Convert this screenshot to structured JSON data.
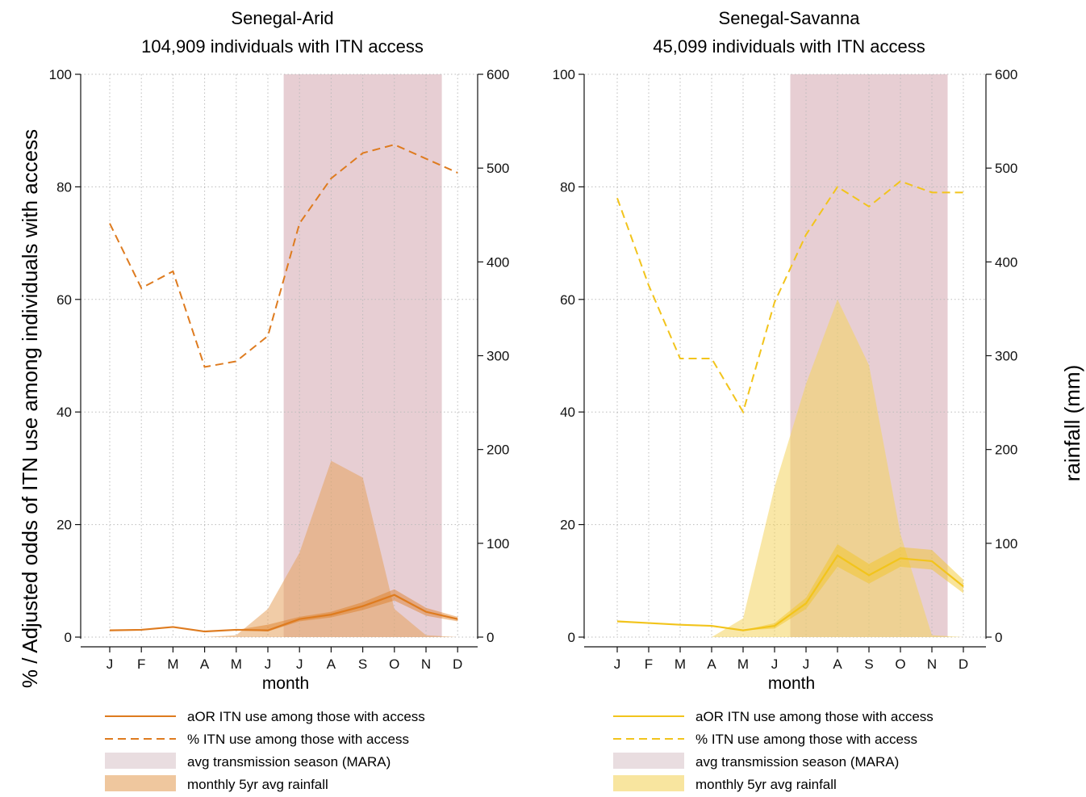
{
  "figure": {
    "ylabel_left": "% / Adjusted odds of ITN use among individuals with access",
    "ylabel_right": "rainfall (mm)"
  },
  "chart_data": [
    {
      "type": "line",
      "title": "Senegal-Arid",
      "subtitle": "104,909 individuals with ITN access",
      "xlabel": "month",
      "categories": [
        "J",
        "F",
        "M",
        "A",
        "M",
        "J",
        "J",
        "A",
        "S",
        "O",
        "N",
        "D"
      ],
      "ylim": [
        0,
        100
      ],
      "y2lim": [
        0,
        600
      ],
      "yticks": [
        0,
        20,
        40,
        60,
        80,
        100
      ],
      "y2ticks": [
        0,
        100,
        200,
        300,
        400,
        500,
        600
      ],
      "grid": true,
      "colors": {
        "line": "#de7b1f",
        "rain": "#e5a25e",
        "season": "#d7aeb6"
      },
      "transmission_season": {
        "start": 6.5,
        "end": 11.5
      },
      "series": [
        {
          "name": "aOR ITN use among those with access",
          "style": "solid",
          "values": [
            1.2,
            1.3,
            1.8,
            1.0,
            1.3,
            1.2,
            3.2,
            4.0,
            5.5,
            7.5,
            4.5,
            3.2
          ],
          "ci_low": [
            1.2,
            1.3,
            1.8,
            1.0,
            1.3,
            1.0,
            2.8,
            3.5,
            4.8,
            6.5,
            3.8,
            2.8
          ],
          "ci_high": [
            1.2,
            1.3,
            1.8,
            1.0,
            1.3,
            2.2,
            3.6,
            4.5,
            6.2,
            8.5,
            5.2,
            3.6
          ]
        },
        {
          "name": "% ITN use among those with access",
          "style": "dashed",
          "values": [
            73.5,
            62,
            65,
            48,
            49,
            53.5,
            73.5,
            81.5,
            86,
            87.5,
            85,
            82.5
          ]
        },
        {
          "name": "monthly 5yr avg rainfall",
          "axis": "right",
          "values": [
            0,
            0,
            0,
            0,
            2,
            30,
            90,
            188,
            170,
            30,
            2,
            0
          ]
        }
      ],
      "legend": [
        {
          "label": "aOR ITN use among those with access",
          "kind": "solid"
        },
        {
          "label": "% ITN use among those with access",
          "kind": "dashed"
        },
        {
          "label": "avg transmission season (MARA)",
          "kind": "season"
        },
        {
          "label": "monthly 5yr avg rainfall",
          "kind": "rain"
        }
      ]
    },
    {
      "type": "line",
      "title": "Senegal-Savanna",
      "subtitle": "45,099 individuals with ITN access",
      "xlabel": "month",
      "categories": [
        "J",
        "F",
        "M",
        "A",
        "M",
        "J",
        "J",
        "A",
        "S",
        "O",
        "N",
        "D"
      ],
      "ylim": [
        0,
        100
      ],
      "y2lim": [
        0,
        600
      ],
      "yticks": [
        0,
        20,
        40,
        60,
        80,
        100
      ],
      "y2ticks": [
        0,
        100,
        200,
        300,
        400,
        500,
        600
      ],
      "grid": true,
      "colors": {
        "line": "#f2c41c",
        "rain": "#f4d35f",
        "season": "#d7aeb6"
      },
      "transmission_season": {
        "start": 6.5,
        "end": 11.5
      },
      "series": [
        {
          "name": "aOR ITN use among those with access",
          "style": "solid",
          "values": [
            2.8,
            2.5,
            2.2,
            2.0,
            1.2,
            2.0,
            6.0,
            14.5,
            11.0,
            14.0,
            13.5,
            9.0
          ],
          "ci_low": [
            2.8,
            2.5,
            2.2,
            2.0,
            1.2,
            1.5,
            5.0,
            12.5,
            9.5,
            12.5,
            12.0,
            7.8
          ],
          "ci_high": [
            2.8,
            2.5,
            2.2,
            2.0,
            1.2,
            2.5,
            7.0,
            16.5,
            13.0,
            16.0,
            15.5,
            10.2
          ]
        },
        {
          "name": "% ITN use among those with access",
          "style": "dashed",
          "values": [
            78,
            62.5,
            49.5,
            49.5,
            40,
            59.5,
            71.5,
            80,
            76.5,
            81,
            79,
            79
          ]
        },
        {
          "name": "monthly 5yr avg rainfall",
          "axis": "right",
          "values": [
            0,
            0,
            0,
            0,
            20,
            160,
            270,
            360,
            290,
            110,
            2,
            0
          ]
        }
      ],
      "legend": [
        {
          "label": "aOR ITN use among those with access",
          "kind": "solid"
        },
        {
          "label": "% ITN use among those with access",
          "kind": "dashed"
        },
        {
          "label": "avg transmission season (MARA)",
          "kind": "season"
        },
        {
          "label": "monthly 5yr avg rainfall",
          "kind": "rain"
        }
      ]
    }
  ]
}
